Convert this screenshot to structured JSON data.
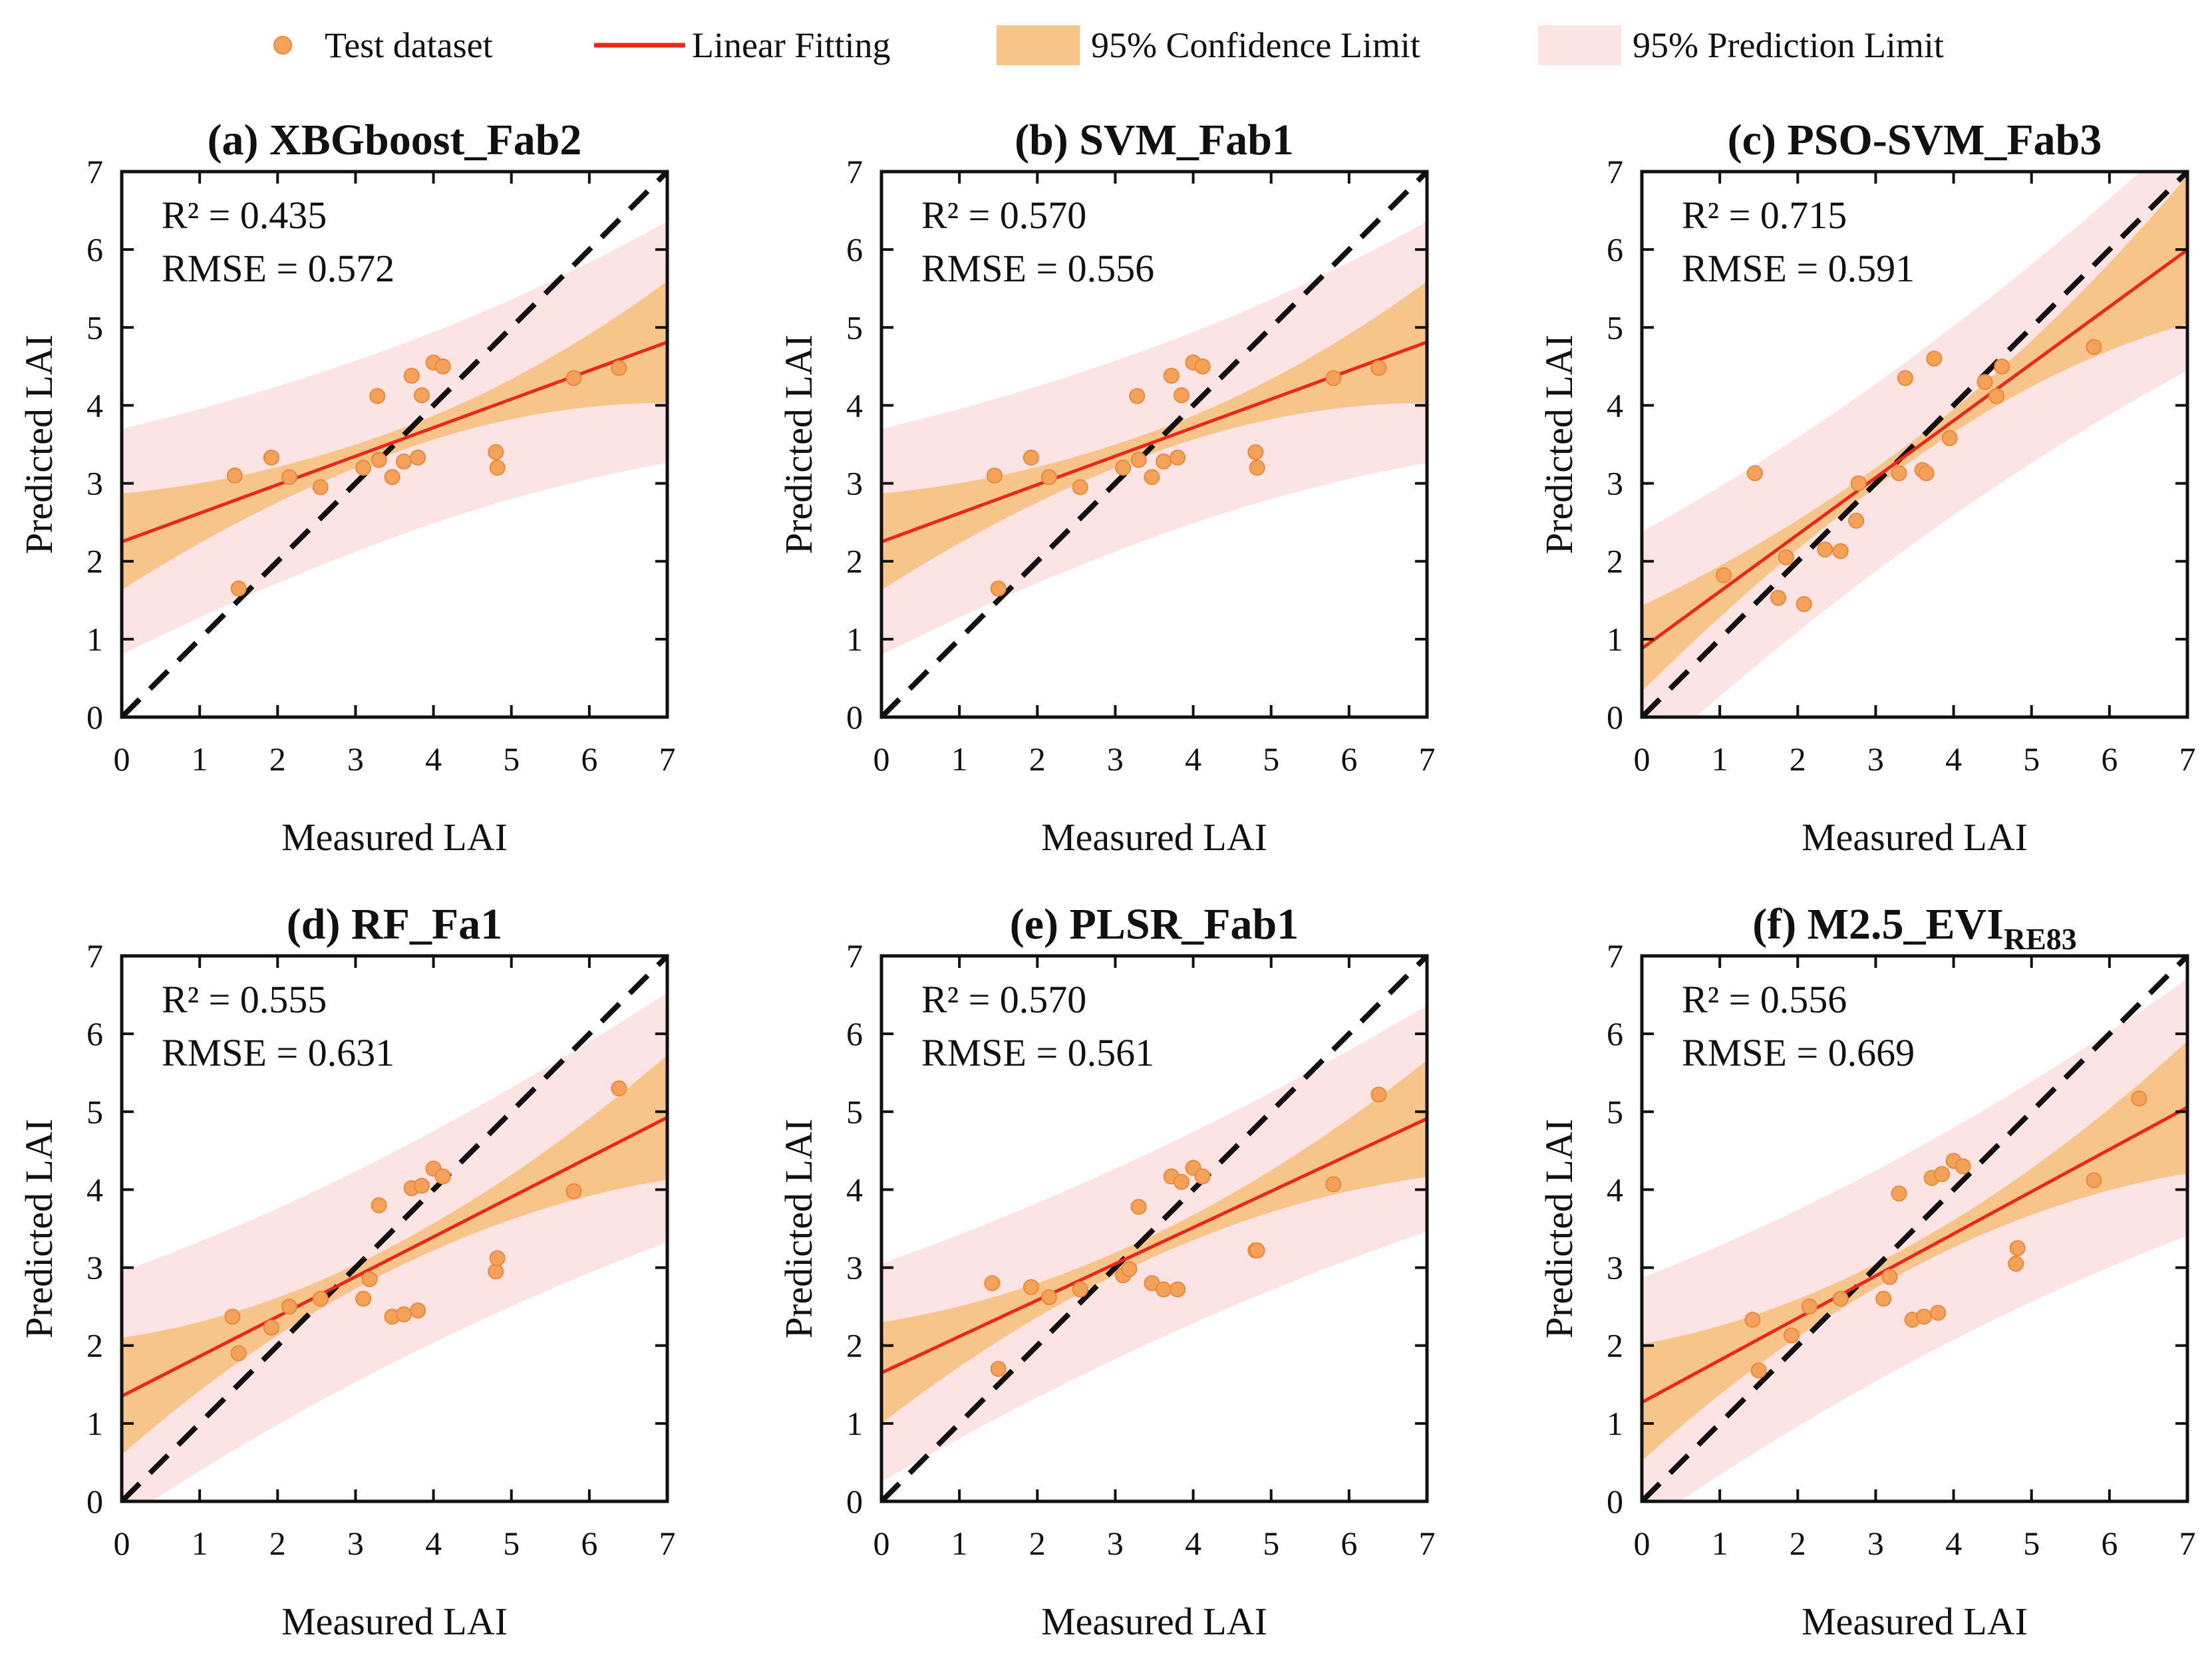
{
  "legend": {
    "test_dataset": "Test dataset",
    "linear_fitting": "Linear Fitting",
    "confidence": "95% Confidence Limit",
    "prediction": "95% Prediction Limit"
  },
  "colors": {
    "point": "#f4a259",
    "point_edge": "#e8893a",
    "fit_line": "#e8281a",
    "confidence_band": "#f7c489",
    "prediction_band": "#fde4e4",
    "one_to_one": "#111111",
    "axis": "#111111"
  },
  "chart_data": [
    {
      "type": "scatter",
      "title": "(a) XBGboost_Fab2",
      "title_main": "(a) XBGboost_Fab2",
      "title_sub": "",
      "xlabel": "Measured LAI",
      "ylabel": "Predicted LAI",
      "xlim": [
        0,
        7
      ],
      "ylim": [
        0,
        7
      ],
      "ticks": [
        0,
        1,
        2,
        3,
        4,
        5,
        6,
        7
      ],
      "r2_text": "R² = 0.435",
      "rmse_text": "RMSE = 0.572",
      "fit": {
        "intercept": 2.25,
        "slope": 0.366
      },
      "conf_halfwidth": {
        "low": 0.62,
        "mid": 0.14,
        "high": 0.78,
        "center": 3.5
      },
      "pred_halfwidth": {
        "low": 1.45,
        "mid": 1.22,
        "high": 1.55,
        "center": 3.5
      },
      "x": [
        1.45,
        1.5,
        1.92,
        2.15,
        2.55,
        3.1,
        3.28,
        3.3,
        3.47,
        3.62,
        3.72,
        3.8,
        3.85,
        4.0,
        4.12,
        4.8,
        4.82,
        5.8,
        6.38
      ],
      "y": [
        3.1,
        1.65,
        3.33,
        3.08,
        2.95,
        3.2,
        4.12,
        3.3,
        3.08,
        3.28,
        4.38,
        3.33,
        4.13,
        4.55,
        4.5,
        3.4,
        3.2,
        4.35,
        4.48
      ]
    },
    {
      "type": "scatter",
      "title": "(b) SVM_Fab1",
      "title_main": "(b) SVM_Fab1",
      "title_sub": "",
      "xlabel": "Measured LAI",
      "ylabel": "Predicted LAI",
      "xlim": [
        0,
        7
      ],
      "ylim": [
        0,
        7
      ],
      "ticks": [
        0,
        1,
        2,
        3,
        4,
        5,
        6,
        7
      ],
      "r2_text": "R² = 0.570",
      "rmse_text": "RMSE = 0.556",
      "fit": {
        "intercept": 2.25,
        "slope": 0.366
      },
      "conf_halfwidth": {
        "low": 0.62,
        "mid": 0.14,
        "high": 0.78,
        "center": 3.5
      },
      "pred_halfwidth": {
        "low": 1.45,
        "mid": 1.22,
        "high": 1.55,
        "center": 3.5
      },
      "x": [
        1.45,
        1.5,
        1.92,
        2.15,
        2.55,
        3.1,
        3.28,
        3.3,
        3.47,
        3.62,
        3.72,
        3.8,
        3.85,
        4.0,
        4.12,
        4.8,
        4.82,
        5.8,
        6.38
      ],
      "y": [
        3.1,
        1.65,
        3.33,
        3.08,
        2.95,
        3.2,
        4.12,
        3.3,
        3.08,
        3.28,
        4.38,
        3.33,
        4.13,
        4.55,
        4.5,
        3.4,
        3.2,
        4.35,
        4.48
      ]
    },
    {
      "type": "scatter",
      "title": "(c) PSO-SVM_Fab3",
      "title_main": "(c) PSO-SVM_Fab3",
      "title_sub": "",
      "xlabel": "Measured LAI",
      "ylabel": "Predicted LAI",
      "xlim": [
        0,
        7
      ],
      "ylim": [
        0,
        7
      ],
      "ticks": [
        0,
        1,
        2,
        3,
        4,
        5,
        6,
        7
      ],
      "r2_text": "R² = 0.715",
      "rmse_text": "RMSE = 0.591",
      "fit": {
        "intercept": 0.88,
        "slope": 0.731
      },
      "conf_halfwidth": {
        "low": 0.55,
        "mid": 0.12,
        "high": 0.95,
        "center": 3.3
      },
      "pred_halfwidth": {
        "low": 1.5,
        "mid": 1.2,
        "high": 1.55,
        "center": 3.3
      },
      "x": [
        1.05,
        1.45,
        1.75,
        1.85,
        2.08,
        2.35,
        2.55,
        2.75,
        2.78,
        3.3,
        3.38,
        3.6,
        3.65,
        3.75,
        3.95,
        4.4,
        4.55,
        4.62,
        5.8
      ],
      "y": [
        1.82,
        3.13,
        1.53,
        2.05,
        1.45,
        2.15,
        2.13,
        2.52,
        3.0,
        3.13,
        4.35,
        3.17,
        3.13,
        4.6,
        3.58,
        4.3,
        4.12,
        4.5,
        4.75
      ]
    },
    {
      "type": "scatter",
      "title": "(d) RF_Fa1",
      "title_main": "(d) RF_Fa1",
      "title_sub": "",
      "xlabel": "Measured LAI",
      "ylabel": "Predicted LAI",
      "xlim": [
        0,
        7
      ],
      "ylim": [
        0,
        7
      ],
      "ticks": [
        0,
        1,
        2,
        3,
        4,
        5,
        6,
        7
      ],
      "r2_text": "R² = 0.555",
      "rmse_text": "RMSE = 0.631",
      "fit": {
        "intercept": 1.35,
        "slope": 0.511
      },
      "conf_halfwidth": {
        "low": 0.75,
        "mid": 0.15,
        "high": 0.8,
        "center": 3.3
      },
      "pred_halfwidth": {
        "low": 1.6,
        "mid": 1.35,
        "high": 1.6,
        "center": 3.3
      },
      "x": [
        1.42,
        1.5,
        1.92,
        2.15,
        2.55,
        3.1,
        3.18,
        3.3,
        3.47,
        3.62,
        3.72,
        3.8,
        3.85,
        4.0,
        4.12,
        4.8,
        4.82,
        5.8,
        6.38
      ],
      "y": [
        2.37,
        1.9,
        2.23,
        2.5,
        2.6,
        2.6,
        2.85,
        3.8,
        2.37,
        2.4,
        4.02,
        2.45,
        4.05,
        4.27,
        4.17,
        2.95,
        3.12,
        3.98,
        5.3
      ]
    },
    {
      "type": "scatter",
      "title": "(e) PLSR_Fab1",
      "title_main": "(e) PLSR_Fab1",
      "title_sub": "",
      "xlabel": "Measured LAI",
      "ylabel": "Predicted LAI",
      "xlim": [
        0,
        7
      ],
      "ylim": [
        0,
        7
      ],
      "ticks": [
        0,
        1,
        2,
        3,
        4,
        5,
        6,
        7
      ],
      "r2_text": "R² = 0.570",
      "rmse_text": "RMSE = 0.561",
      "fit": {
        "intercept": 1.65,
        "slope": 0.466
      },
      "conf_halfwidth": {
        "low": 0.65,
        "mid": 0.14,
        "high": 0.75,
        "center": 3.3
      },
      "pred_halfwidth": {
        "low": 1.4,
        "mid": 1.22,
        "high": 1.45,
        "center": 3.3
      },
      "x": [
        1.42,
        1.5,
        1.92,
        2.15,
        2.55,
        3.1,
        3.18,
        3.3,
        3.47,
        3.62,
        3.72,
        3.8,
        3.85,
        4.0,
        4.12,
        4.8,
        4.82,
        5.8,
        6.38
      ],
      "y": [
        2.8,
        1.7,
        2.75,
        2.62,
        2.72,
        2.9,
        2.98,
        3.78,
        2.8,
        2.72,
        4.17,
        2.72,
        4.1,
        4.28,
        4.17,
        3.22,
        3.22,
        4.07,
        5.22
      ]
    },
    {
      "type": "scatter",
      "title": "(f) M2.5_EVIRE83",
      "title_main": "(f) M2.5_EVI",
      "title_sub": "RE83",
      "xlabel": "Measured LAI",
      "ylabel": "Predicted LAI",
      "xlim": [
        0,
        7
      ],
      "ylim": [
        0,
        7
      ],
      "ticks": [
        0,
        1,
        2,
        3,
        4,
        5,
        6,
        7
      ],
      "r2_text": "R² = 0.556",
      "rmse_text": "RMSE = 0.669",
      "fit": {
        "intercept": 1.27,
        "slope": 0.541
      },
      "conf_halfwidth": {
        "low": 0.75,
        "mid": 0.15,
        "high": 0.85,
        "center": 3.3
      },
      "pred_halfwidth": {
        "low": 1.6,
        "mid": 1.35,
        "high": 1.65,
        "center": 3.3
      },
      "x": [
        1.42,
        1.5,
        1.92,
        2.15,
        2.55,
        3.1,
        3.18,
        3.3,
        3.47,
        3.62,
        3.72,
        3.8,
        3.85,
        4.0,
        4.12,
        4.8,
        4.82,
        5.8,
        6.38
      ],
      "y": [
        2.33,
        1.68,
        2.13,
        2.5,
        2.6,
        2.6,
        2.88,
        3.95,
        2.33,
        2.37,
        4.15,
        2.42,
        4.2,
        4.37,
        4.3,
        3.05,
        3.25,
        4.12,
        5.17
      ]
    }
  ]
}
